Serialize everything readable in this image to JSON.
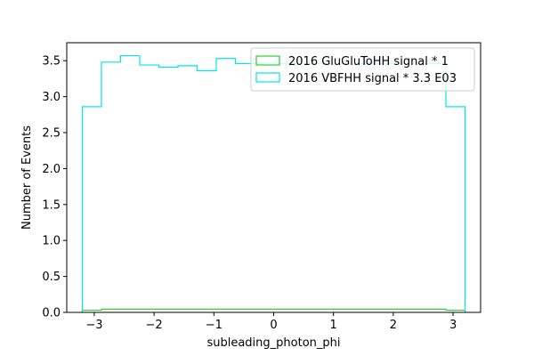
{
  "chart_data": {
    "type": "step-histogram",
    "xlabel": "subleading_photon_phi",
    "ylabel": "Number of Events",
    "xlim": [
      -3.46,
      3.46
    ],
    "ylim": [
      0,
      3.75
    ],
    "x_ticks": [
      -3,
      -2,
      -1,
      0,
      1,
      2,
      3
    ],
    "y_ticks": [
      0.0,
      0.5,
      1.0,
      1.5,
      2.0,
      2.5,
      3.0,
      3.5
    ],
    "x_tick_labels": [
      "−3",
      "−2",
      "−1",
      "0",
      "1",
      "2",
      "3"
    ],
    "y_tick_labels": [
      "0.0",
      "0.5",
      "1.0",
      "1.5",
      "2.0",
      "2.5",
      "3.0",
      "3.5"
    ],
    "bin_edges": [
      -3.2,
      -2.88,
      -2.56,
      -2.24,
      -1.92,
      -1.6,
      -1.28,
      -0.96,
      -0.64,
      -0.32,
      0.0,
      0.32,
      0.64,
      0.96,
      1.28,
      1.6,
      1.92,
      2.24,
      2.56,
      2.88,
      3.2
    ],
    "legend_position": "upper right",
    "series": [
      {
        "name": "2016 GluGluToHH signal * 1",
        "color": "#33cc33",
        "values": [
          0.03,
          0.045,
          0.045,
          0.045,
          0.045,
          0.045,
          0.045,
          0.045,
          0.045,
          0.045,
          0.045,
          0.045,
          0.045,
          0.045,
          0.045,
          0.045,
          0.045,
          0.045,
          0.045,
          0.03
        ]
      },
      {
        "name": "2016 VBFHH signal * 3.3 E03",
        "color": "#00e5ee",
        "values": [
          2.86,
          3.48,
          3.57,
          3.44,
          3.41,
          3.43,
          3.36,
          3.53,
          3.46,
          3.46,
          3.46,
          3.46,
          3.46,
          3.46,
          3.46,
          3.46,
          3.46,
          3.46,
          3.46,
          2.86
        ]
      }
    ]
  }
}
